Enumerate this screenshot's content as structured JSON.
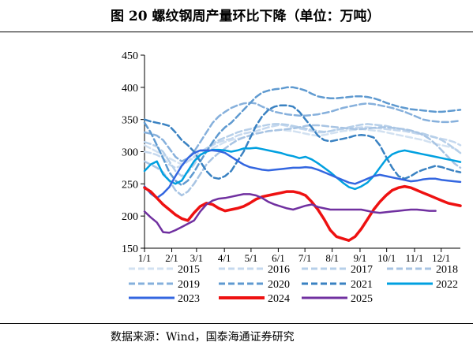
{
  "figure": {
    "title": "图 20  螺纹钢周产量环比下降（单位：万吨）",
    "source": "数据来源：Wind，国泰海通证券研究"
  },
  "chart_data": {
    "type": "line",
    "ylim": [
      150,
      450
    ],
    "yticks": [
      150,
      200,
      250,
      300,
      350,
      400,
      450
    ],
    "xlim": [
      1,
      52
    ],
    "xticks": [
      {
        "label": "1/1",
        "week": 1
      },
      {
        "label": "2/1",
        "week": 5.4
      },
      {
        "label": "3/1",
        "week": 9.4
      },
      {
        "label": "4/1",
        "week": 13.9
      },
      {
        "label": "5/1",
        "week": 18.2
      },
      {
        "label": "6/1",
        "week": 22.6
      },
      {
        "label": "7/1",
        "week": 26.9
      },
      {
        "label": "8/1",
        "week": 31.3
      },
      {
        "label": "9/1",
        "week": 35.8
      },
      {
        "label": "10/1",
        "week": 40.1
      },
      {
        "label": "11/1",
        "week": 44.6
      },
      {
        "label": "12/1",
        "week": 48.9
      }
    ],
    "legend_placement": "bottom",
    "series": [
      {
        "name": "2015",
        "color": "#d2e1f1",
        "dash": "8,4",
        "width": 2.5,
        "values": [
          310,
          305,
          300,
          295,
          290,
          285,
          280,
          285,
          290,
          295,
          300,
          305,
          310,
          315,
          318,
          320,
          322,
          325,
          328,
          330,
          332,
          333,
          334,
          333,
          332,
          330,
          328,
          326,
          325,
          326,
          328,
          330,
          332,
          333,
          334,
          335,
          334,
          333,
          332,
          330,
          328,
          326,
          324,
          322,
          320,
          318,
          315,
          312,
          310,
          308,
          305,
          300
        ]
      },
      {
        "name": "2016",
        "color": "#c5d8ee",
        "dash": "8,4",
        "width": 2.5,
        "values": [
          300,
          298,
          295,
          290,
          280,
          275,
          278,
          285,
          292,
          300,
          305,
          310,
          315,
          318,
          320,
          325,
          328,
          330,
          332,
          335,
          338,
          340,
          342,
          340,
          338,
          336,
          334,
          332,
          330,
          330,
          332,
          334,
          335,
          336,
          337,
          338,
          338,
          337,
          336,
          335,
          334,
          333,
          332,
          330,
          328,
          326,
          324,
          322,
          320,
          318,
          315,
          310
        ]
      },
      {
        "name": "2017",
        "color": "#b6cfe9",
        "dash": "8,4",
        "width": 2.5,
        "values": [
          315,
          312,
          308,
          300,
          285,
          270,
          262,
          268,
          280,
          295,
          305,
          312,
          318,
          322,
          326,
          330,
          333,
          335,
          338,
          340,
          342,
          343,
          343,
          342,
          340,
          338,
          336,
          334,
          332,
          331,
          332,
          334,
          336,
          338,
          340,
          342,
          343,
          342,
          341,
          340,
          338,
          336,
          334,
          332,
          330,
          328,
          325,
          322,
          318,
          312,
          305,
          298
        ]
      },
      {
        "name": "2018",
        "color": "#a8c4e3",
        "dash": "8,4",
        "width": 2.5,
        "values": [
          285,
          280,
          275,
          268,
          255,
          240,
          232,
          238,
          250,
          265,
          280,
          290,
          298,
          305,
          312,
          318,
          322,
          325,
          328,
          330,
          332,
          333,
          334,
          335,
          336,
          338,
          340,
          341,
          341,
          340,
          339,
          338,
          337,
          336,
          335,
          335,
          336,
          337,
          338,
          338,
          337,
          336,
          335,
          333,
          330,
          326,
          320,
          312,
          302,
          292,
          282,
          275
        ]
      },
      {
        "name": "2019",
        "color": "#86b0dc",
        "dash": "8,4",
        "width": 2.5,
        "values": [
          330,
          328,
          325,
          318,
          305,
          292,
          285,
          290,
          300,
          315,
          330,
          345,
          355,
          362,
          368,
          372,
          375,
          376,
          375,
          370,
          366,
          362,
          360,
          358,
          357,
          356,
          356,
          357,
          358,
          360,
          362,
          365,
          368,
          370,
          372,
          374,
          375,
          374,
          372,
          370,
          368,
          365,
          362,
          358,
          354,
          350,
          348,
          347,
          346,
          346,
          347,
          348
        ]
      },
      {
        "name": "2020",
        "color": "#5f9ad0",
        "dash": "8,4",
        "width": 2.5,
        "values": [
          345,
          330,
          310,
          290,
          268,
          255,
          248,
          255,
          268,
          285,
          300,
          315,
          328,
          338,
          345,
          355,
          365,
          375,
          385,
          392,
          395,
          397,
          398,
          400,
          400,
          398,
          395,
          390,
          386,
          384,
          383,
          383,
          384,
          385,
          386,
          386,
          385,
          383,
          380,
          376,
          373,
          370,
          368,
          366,
          365,
          364,
          363,
          362,
          362,
          363,
          364,
          365
        ]
      },
      {
        "name": "2021",
        "color": "#3a82c2",
        "dash": "8,4",
        "width": 2.5,
        "values": [
          350,
          347,
          345,
          343,
          340,
          330,
          318,
          310,
          300,
          285,
          270,
          260,
          258,
          262,
          270,
          285,
          300,
          320,
          340,
          355,
          365,
          370,
          372,
          372,
          370,
          362,
          350,
          338,
          325,
          318,
          316,
          318,
          320,
          322,
          325,
          326,
          325,
          322,
          310,
          292,
          275,
          262,
          258,
          262,
          268,
          272,
          275,
          278,
          276,
          273,
          270,
          268
        ]
      },
      {
        "name": "2022",
        "color": "#00a0e0",
        "dash": "",
        "width": 2.5,
        "values": [
          270,
          280,
          285,
          265,
          255,
          250,
          255,
          270,
          285,
          295,
          300,
          303,
          303,
          302,
          300,
          302,
          305,
          305,
          306,
          304,
          302,
          300,
          298,
          295,
          293,
          290,
          292,
          288,
          282,
          275,
          268,
          260,
          252,
          245,
          242,
          246,
          252,
          262,
          275,
          288,
          296,
          300,
          302,
          300,
          298,
          296,
          294,
          292,
          290,
          288,
          286,
          284
        ]
      },
      {
        "name": "2023",
        "color": "#3366e0",
        "dash": "",
        "width": 2.5,
        "values": [
          246,
          235,
          228,
          235,
          245,
          262,
          278,
          290,
          298,
          302,
          302,
          302,
          301,
          298,
          292,
          286,
          280,
          276,
          274,
          272,
          271,
          272,
          273,
          274,
          275,
          275,
          276,
          275,
          272,
          268,
          264,
          260,
          256,
          252,
          250,
          254,
          258,
          262,
          264,
          262,
          260,
          258,
          256,
          254,
          255,
          257,
          258,
          258,
          256,
          255,
          254,
          253
        ]
      },
      {
        "name": "2024",
        "color": "#ee1111",
        "dash": "",
        "width": 3.5,
        "values": [
          244,
          238,
          228,
          218,
          210,
          202,
          196,
          193,
          205,
          215,
          220,
          218,
          212,
          208,
          210,
          212,
          215,
          220,
          226,
          230,
          232,
          234,
          236,
          238,
          238,
          236,
          232,
          222,
          210,
          195,
          178,
          168,
          165,
          162,
          168,
          180,
          195,
          210,
          222,
          232,
          240,
          244,
          246,
          244,
          240,
          236,
          232,
          228,
          224,
          220,
          218,
          216
        ]
      },
      {
        "name": "2025",
        "color": "#7030a0",
        "dash": "",
        "width": 2.5,
        "values": [
          207,
          198,
          190,
          175,
          174,
          178,
          183,
          188,
          193,
          207,
          218,
          224,
          227,
          228,
          230,
          232,
          234,
          234,
          232,
          228,
          222,
          218,
          215,
          212,
          210,
          213,
          216,
          218,
          214,
          212,
          210,
          210,
          210,
          210,
          210,
          210,
          208,
          206,
          205,
          206,
          207,
          208,
          209,
          210,
          210,
          209,
          208,
          208,
          null,
          null,
          null,
          null
        ]
      }
    ]
  }
}
